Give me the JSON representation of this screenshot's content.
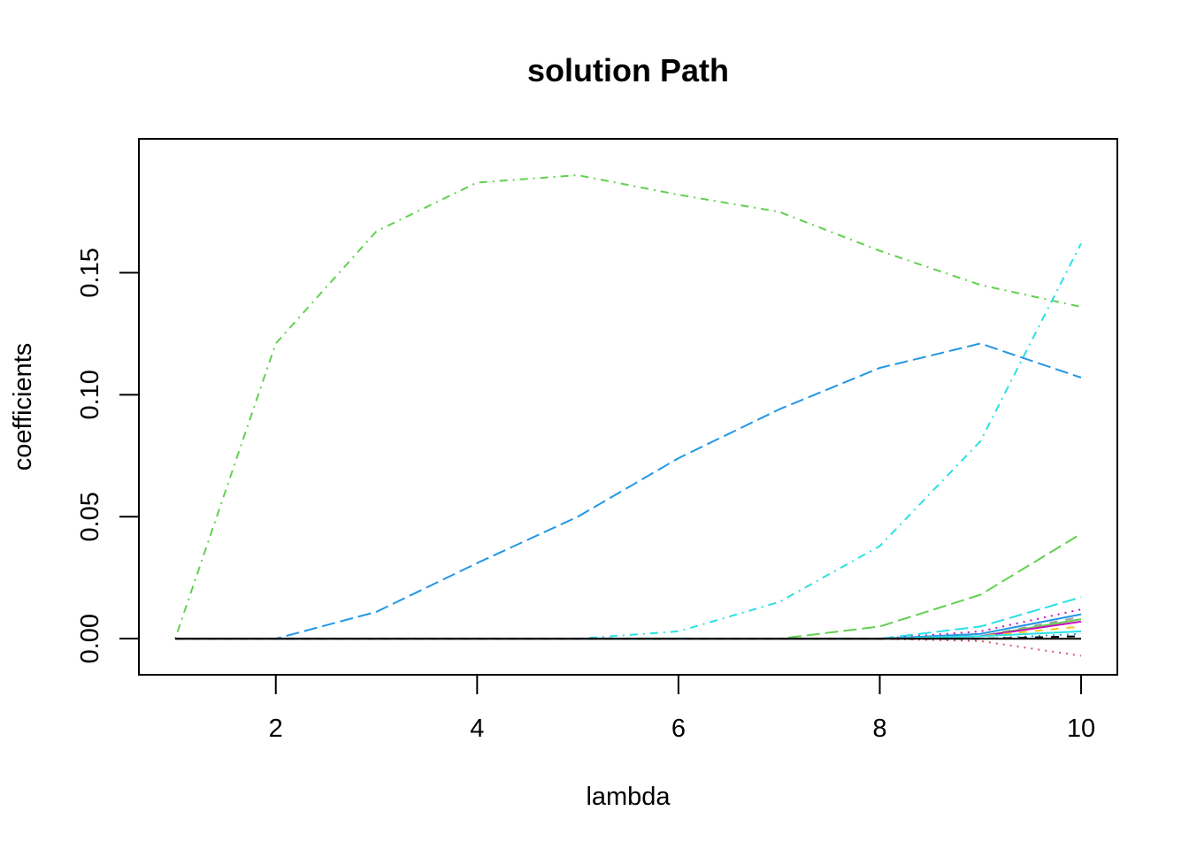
{
  "chart_data": {
    "type": "line",
    "title": "solution Path",
    "xlabel": "lambda",
    "ylabel": "coefficients",
    "xlim": [
      0.64,
      10.36
    ],
    "ylim": [
      -0.0148,
      0.2049
    ],
    "xticks": [
      "2",
      "4",
      "6",
      "8",
      "10"
    ],
    "yticks": [
      "0.00",
      "0.05",
      "0.10",
      "0.15"
    ],
    "x": [
      1,
      2,
      3,
      4,
      5,
      6,
      7,
      8,
      9,
      10
    ],
    "grid": false,
    "legend": "none",
    "series": [
      {
        "color": "#61D04F",
        "dash": "dotdash",
        "values": [
          0,
          0.121,
          0.167,
          0.187,
          0.19,
          0.182,
          0.175,
          0.159,
          0.145,
          0.136
        ]
      },
      {
        "color": "#2297E6",
        "dash": "longdash",
        "values": [
          0,
          0,
          0.011,
          0.031,
          0.05,
          0.074,
          0.094,
          0.111,
          0.121,
          0.107
        ]
      },
      {
        "color": "#28E2E5",
        "dash": "dotdash",
        "values": [
          0,
          0,
          0,
          0,
          0,
          0.003,
          0.015,
          0.038,
          0.081,
          0.162
        ]
      },
      {
        "color": "#61D04F",
        "dash": "longdash",
        "values": [
          0,
          0,
          0,
          0,
          0,
          0,
          0,
          0.005,
          0.018,
          0.043
        ]
      },
      {
        "color": "#28E2E5",
        "dash": "longdash",
        "values": [
          0,
          0,
          0,
          0,
          0,
          0,
          0,
          0,
          0.005,
          0.017
        ]
      },
      {
        "color": "#CD0BBC",
        "dash": "dotted",
        "values": [
          0,
          0,
          0,
          0,
          0,
          0,
          0,
          0,
          0.003,
          0.012
        ]
      },
      {
        "color": "#2297E6",
        "dash": "solid",
        "values": [
          0,
          0,
          0,
          0,
          0,
          0,
          0,
          0,
          0.002,
          0.01
        ]
      },
      {
        "color": "#9E9E9E",
        "dash": "dashed",
        "values": [
          0,
          0,
          0,
          0,
          0,
          0,
          0,
          0,
          0.001,
          0.009
        ]
      },
      {
        "color": "#61D04F",
        "dash": "solid",
        "values": [
          0,
          0,
          0,
          0,
          0,
          0,
          0,
          0,
          0.001,
          0.008
        ]
      },
      {
        "color": "#CD0BBC",
        "dash": "solid",
        "values": [
          0,
          0,
          0,
          0,
          0,
          0,
          0,
          0,
          0.001,
          0.007
        ]
      },
      {
        "color": "#F5C710",
        "dash": "dashed",
        "values": [
          0,
          0,
          0,
          0,
          0,
          0,
          0,
          0,
          0.001,
          0.005
        ]
      },
      {
        "color": "#28E2E5",
        "dash": "solid",
        "values": [
          0,
          0,
          0,
          0,
          0,
          0,
          0,
          0,
          0.001,
          0.003
        ]
      },
      {
        "color": "#2297E6",
        "dash": "dotted",
        "values": [
          0,
          0,
          0,
          0,
          0,
          0,
          0,
          0,
          0.0,
          0.002
        ]
      },
      {
        "color": "#000000",
        "dash": "dashed",
        "values": [
          0,
          0,
          0,
          0,
          0,
          0,
          0,
          0,
          0.0,
          0.001
        ]
      },
      {
        "color": "#DF536B",
        "dash": "dotted",
        "values": [
          0,
          0,
          0,
          0,
          0,
          0,
          0,
          0,
          -0.001,
          -0.007
        ]
      },
      {
        "color": "#000000",
        "dash": "solid",
        "values": [
          0,
          0,
          0,
          0,
          0,
          0,
          0,
          0,
          0,
          0
        ]
      }
    ]
  }
}
